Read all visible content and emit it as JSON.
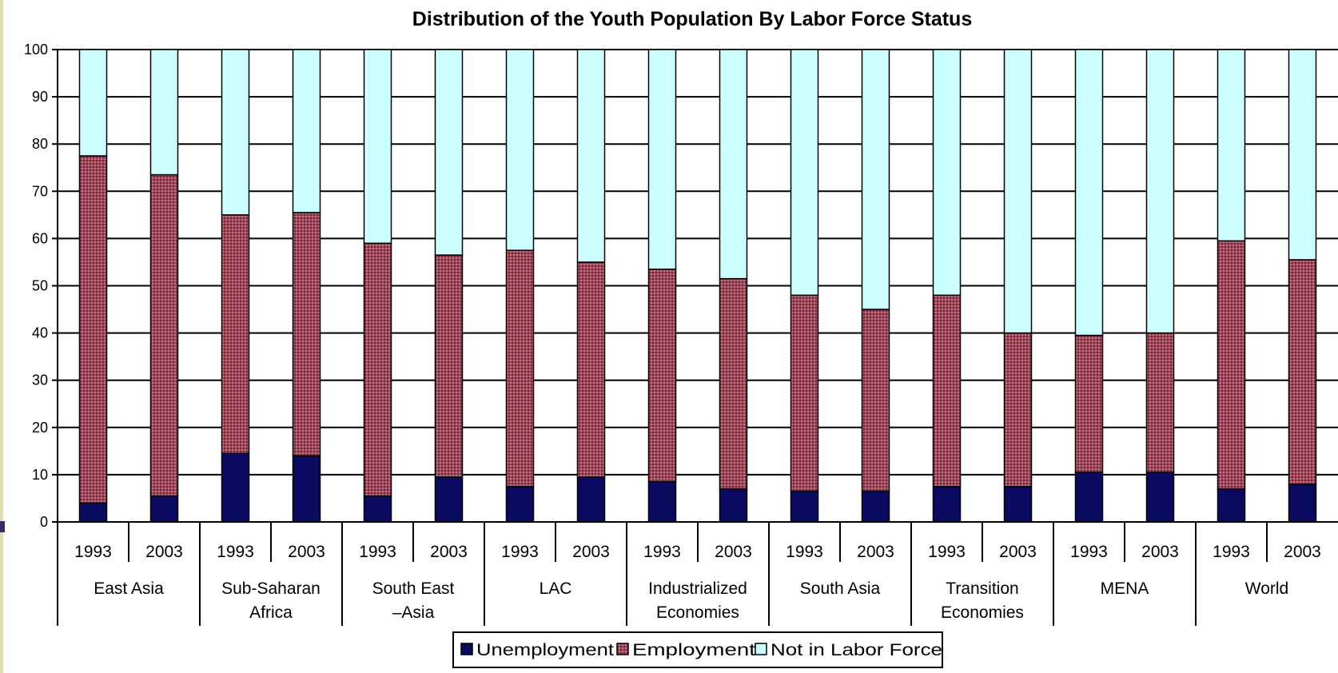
{
  "chart_data": {
    "type": "bar",
    "stacked": true,
    "title": "Distribution of the Youth Population By Labor Force Status",
    "xlabel": "",
    "ylabel": "",
    "ylim": [
      0,
      100
    ],
    "yticks": [
      0,
      10,
      20,
      30,
      40,
      50,
      60,
      70,
      80,
      90,
      100
    ],
    "grid": true,
    "legend_position": "bottom",
    "groups": [
      {
        "name_lines": [
          "East Asia"
        ],
        "years": [
          "1993",
          "2003"
        ]
      },
      {
        "name_lines": [
          "Sub-Saharan",
          "Africa"
        ],
        "years": [
          "1993",
          "2003"
        ]
      },
      {
        "name_lines": [
          "South East",
          "–Asia"
        ],
        "years": [
          "1993",
          "2003"
        ]
      },
      {
        "name_lines": [
          "LAC"
        ],
        "years": [
          "1993",
          "2003"
        ]
      },
      {
        "name_lines": [
          "Industrialized",
          "Economies"
        ],
        "years": [
          "1993",
          "2003"
        ]
      },
      {
        "name_lines": [
          "South Asia"
        ],
        "years": [
          "1993",
          "2003"
        ]
      },
      {
        "name_lines": [
          "Transition",
          "Economies"
        ],
        "years": [
          "1993",
          "2003"
        ]
      },
      {
        "name_lines": [
          "MENA"
        ],
        "years": [
          "1993",
          "2003"
        ]
      },
      {
        "name_lines": [
          "World"
        ],
        "years": [
          "1993",
          "2003"
        ]
      }
    ],
    "series": [
      {
        "name": "Unemployment",
        "color": "#0a0a60",
        "values": [
          4,
          5.5,
          14.5,
          14,
          5.5,
          9.5,
          7.5,
          9.5,
          8.5,
          7,
          6.5,
          6.5,
          7.5,
          7.5,
          10.5,
          10.5,
          7,
          8
        ]
      },
      {
        "name": "Employment",
        "color": "#a0485a",
        "values": [
          73.5,
          68,
          50.5,
          51.5,
          53.5,
          47,
          50,
          45.5,
          45,
          44.5,
          41.5,
          38.5,
          40.5,
          32.5,
          29,
          29.5,
          52.5,
          47.5
        ]
      },
      {
        "name": "Not in Labor Force",
        "color": "#ccffff",
        "values": [
          22.5,
          26.5,
          35,
          34.5,
          41,
          43.5,
          42.5,
          45,
          46.5,
          48.5,
          52,
          55,
          52,
          60,
          60.5,
          60,
          40.5,
          44.5
        ]
      }
    ]
  }
}
